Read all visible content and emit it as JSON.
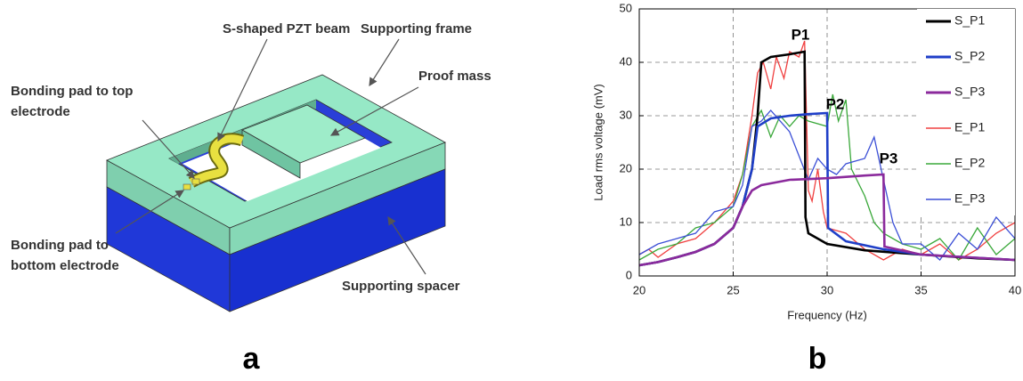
{
  "panel_labels": [
    "a",
    "b"
  ],
  "diagram": {
    "labels": [
      {
        "lines": [
          "S-shaped PZT beam"
        ]
      },
      {
        "lines": [
          "Supporting frame"
        ]
      },
      {
        "lines": [
          "Bonding pad to top",
          "electrode"
        ]
      },
      {
        "lines": [
          "Proof mass"
        ]
      },
      {
        "lines": [
          "Bonding pad to",
          "bottom electrode"
        ]
      },
      {
        "lines": [
          "Supporting spacer"
        ]
      }
    ]
  },
  "chart_data": {
    "type": "line",
    "xlabel": "Frequency (Hz)",
    "ylabel": "Load rms voltage (mV)",
    "xlim": [
      20,
      40
    ],
    "ylim": [
      0,
      50
    ],
    "xticks": [
      20,
      25,
      30,
      35,
      40
    ],
    "yticks": [
      0,
      10,
      20,
      30,
      40,
      50
    ],
    "grid": true,
    "legend": "upper right",
    "annotations": [
      "P1",
      "P2",
      "P3"
    ],
    "series": [
      {
        "name": "S_P1",
        "color": "#000000",
        "x": [
          20,
          21,
          22,
          23,
          24,
          25,
          25.5,
          26,
          26.3,
          26.5,
          27,
          28,
          28.8,
          28.85,
          29,
          30,
          32,
          35,
          38,
          40
        ],
        "values": [
          2,
          2.6,
          3.5,
          4.5,
          6,
          9,
          13,
          20,
          30,
          40,
          41,
          41.5,
          42,
          11,
          8,
          6,
          4.8,
          4,
          3.3,
          3
        ]
      },
      {
        "name": "S_P2",
        "color": "#1f3fc8",
        "x": [
          20,
          21,
          22,
          23,
          24,
          25,
          25.5,
          26,
          26.3,
          27,
          28,
          29,
          30,
          30.05,
          31,
          33,
          35,
          40
        ],
        "values": [
          2,
          2.6,
          3.5,
          4.5,
          6,
          9,
          13,
          20,
          28,
          29.5,
          30,
          30.3,
          30.5,
          9,
          6.5,
          5,
          4,
          3
        ]
      },
      {
        "name": "S_P3",
        "color": "#8b2a9c",
        "x": [
          20,
          21,
          22,
          23,
          24,
          25,
          25.5,
          26,
          26.5,
          28,
          30,
          32,
          33,
          33.05,
          35,
          40
        ],
        "values": [
          2,
          2.6,
          3.5,
          4.5,
          6,
          9,
          13,
          16,
          17,
          18,
          18.3,
          18.8,
          19,
          5.5,
          4,
          3
        ]
      },
      {
        "name": "E_P1",
        "color": "#f04040",
        "x": [
          20,
          20.5,
          21,
          22,
          23,
          24,
          25,
          25.5,
          26,
          26.3,
          26.6,
          27,
          27.3,
          27.7,
          28,
          28.5,
          28.8,
          29,
          29.2,
          29.5,
          29.8,
          30,
          31,
          32,
          33,
          34,
          35,
          36,
          37,
          38,
          39,
          40
        ],
        "values": [
          4,
          5,
          3.5,
          6,
          7,
          10,
          14,
          19,
          30,
          38,
          40,
          35,
          41,
          37,
          42,
          41,
          44,
          16,
          14,
          20,
          12,
          9,
          8,
          5,
          3,
          5,
          4,
          6,
          3,
          5,
          8,
          10
        ]
      },
      {
        "name": "E_P2",
        "color": "#3aa83a",
        "x": [
          20,
          21,
          22,
          23,
          24,
          25,
          25.5,
          26,
          26.5,
          27,
          27.5,
          28,
          28.5,
          29,
          30,
          30.3,
          30.6,
          31,
          31.3,
          32,
          32.5,
          33,
          34,
          35,
          36,
          37,
          38,
          39,
          40
        ],
        "values": [
          3,
          5,
          6,
          9,
          10,
          13,
          19,
          28,
          31,
          26,
          30,
          28,
          30,
          29,
          28,
          34,
          29,
          33,
          20,
          15,
          10,
          8,
          6,
          5,
          7,
          3,
          9,
          4,
          7
        ]
      },
      {
        "name": "E_P3",
        "color": "#3b4fd6",
        "x": [
          20,
          21,
          22,
          23,
          24,
          25,
          25.5,
          26,
          26.5,
          27,
          28,
          29,
          29.5,
          30,
          30.5,
          31,
          32,
          32.5,
          33,
          33.5,
          34,
          35,
          36,
          37,
          38,
          39,
          40
        ],
        "values": [
          4,
          6,
          7,
          8,
          12,
          13,
          17,
          28,
          29,
          31,
          27,
          18,
          22,
          20,
          19,
          21,
          22,
          26,
          18,
          10,
          6,
          6,
          3,
          8,
          5,
          11,
          7
        ]
      }
    ]
  }
}
